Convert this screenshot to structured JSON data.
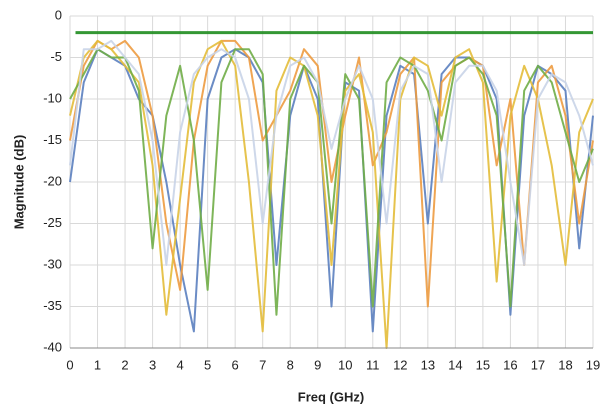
{
  "chart_data": {
    "type": "line",
    "ylabel": "Magnitude (dB)",
    "xlabel": "Freq (GHz)",
    "x": [
      0,
      0.5,
      1,
      1.5,
      2,
      2.5,
      3,
      3.5,
      4,
      4.5,
      5,
      5.5,
      6,
      6.5,
      7,
      7.5,
      8,
      8.5,
      9,
      9.5,
      10,
      10.5,
      11,
      11.5,
      12,
      12.5,
      13,
      13.5,
      14,
      14.5,
      15,
      15.5,
      16,
      16.5,
      17,
      17.5,
      18,
      18.5,
      19
    ],
    "series": [
      {
        "color": "#5b7fbf",
        "values": [
          -20,
          -8,
          -4,
          -5,
          -6,
          -10,
          -12,
          -20,
          -30,
          -38,
          -10,
          -5,
          -4,
          -5,
          -8,
          -30,
          -12,
          -6,
          -10,
          -35,
          -8,
          -9,
          -38,
          -12,
          -6,
          -7,
          -25,
          -7,
          -5,
          -5,
          -6,
          -10,
          -36,
          -12,
          -6,
          -7,
          -9,
          -28,
          -12
        ]
      },
      {
        "color": "#ed9b40",
        "values": [
          -15,
          -6,
          -3,
          -4,
          -3,
          -5,
          -12,
          -25,
          -33,
          -15,
          -6,
          -3,
          -3,
          -5,
          -15,
          -12,
          -9,
          -4,
          -6,
          -20,
          -12,
          -5,
          -18,
          -14,
          -7,
          -5,
          -35,
          -8,
          -6,
          -5,
          -6,
          -18,
          -10,
          -30,
          -8,
          -6,
          -12,
          -25,
          -15
        ]
      },
      {
        "color": "#e3bc3a",
        "values": [
          -12,
          -5,
          -3,
          -4,
          -6,
          -8,
          -18,
          -36,
          -22,
          -8,
          -4,
          -3,
          -6,
          -20,
          -38,
          -9,
          -5,
          -6,
          -12,
          -30,
          -9,
          -7,
          -14,
          -40,
          -10,
          -5,
          -6,
          -12,
          -5,
          -4,
          -8,
          -32,
          -12,
          -6,
          -10,
          -18,
          -30,
          -14,
          -10
        ]
      },
      {
        "color": "#70ad47",
        "values": [
          -10,
          -7,
          -4,
          -5,
          -5,
          -9,
          -28,
          -12,
          -6,
          -15,
          -33,
          -8,
          -4,
          -4,
          -7,
          -36,
          -10,
          -6,
          -8,
          -25,
          -7,
          -10,
          -35,
          -8,
          -5,
          -6,
          -9,
          -15,
          -6,
          -5,
          -7,
          -12,
          -35,
          -9,
          -6,
          -8,
          -14,
          -20,
          -16
        ]
      },
      {
        "color": "#c9d4e8",
        "values": [
          -18,
          -4,
          -4,
          -3,
          -5,
          -7,
          -15,
          -30,
          -14,
          -7,
          -5,
          -4,
          -5,
          -10,
          -25,
          -12,
          -6,
          -5,
          -8,
          -16,
          -10,
          -6,
          -10,
          -25,
          -9,
          -6,
          -7,
          -20,
          -8,
          -6,
          -6,
          -9,
          -20,
          -30,
          -10,
          -7,
          -8,
          -12,
          -18
        ]
      }
    ],
    "limit": {
      "color": "#1e8c1e",
      "x": [
        0.2,
        19
      ],
      "values": [
        -2,
        -2
      ]
    },
    "xlim": [
      0,
      19
    ],
    "ylim": [
      -40,
      0
    ],
    "xticks": [
      0,
      1,
      2,
      3,
      4,
      5,
      6,
      7,
      8,
      9,
      10,
      11,
      12,
      13,
      14,
      15,
      16,
      17,
      18,
      19
    ],
    "yticks": [
      0,
      -5,
      -10,
      -15,
      -20,
      -25,
      -30,
      -35,
      -40
    ],
    "grid": true
  }
}
